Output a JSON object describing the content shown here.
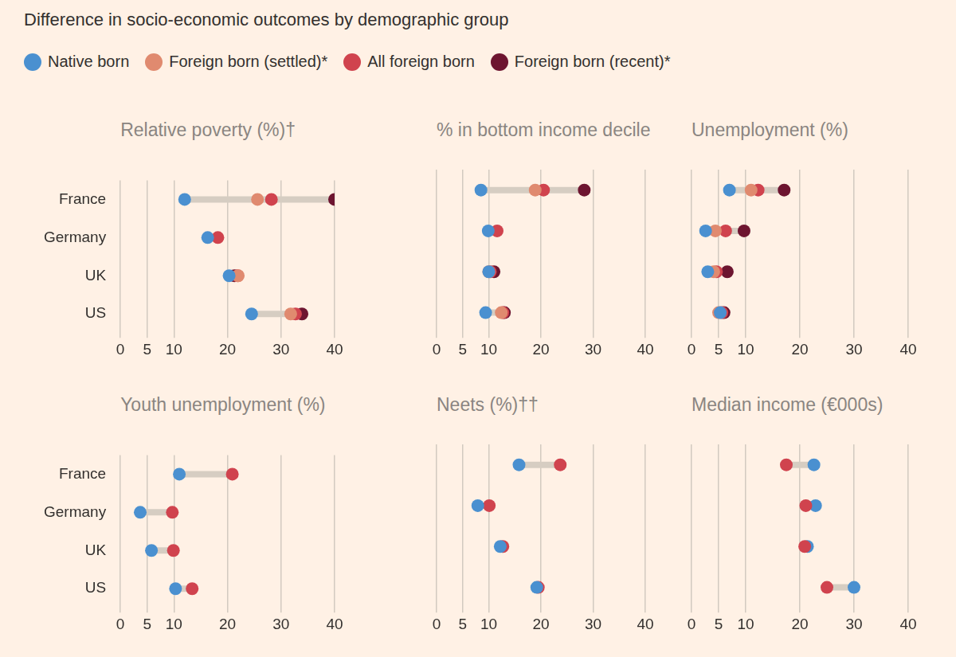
{
  "title": "Difference in socio-economic outcomes by demographic group",
  "legend": "top-left",
  "chart_data": [
    {
      "type": "dot",
      "title": "Relative poverty (%)†",
      "orientation": "horizontal",
      "categories": [
        "France",
        "Germany",
        "UK",
        "US"
      ],
      "series": [
        {
          "name": "Native born",
          "color": "#4a90d0",
          "values": [
            12,
            16.3,
            20.3,
            24.5
          ]
        },
        {
          "name": "Foreign born (settled)*",
          "color": "#e08a6f",
          "values": [
            25.6,
            null,
            22,
            31.8
          ]
        },
        {
          "name": "All foreign born",
          "color": "#d0434e",
          "values": [
            28.2,
            18.2,
            21.9,
            32.7
          ]
        },
        {
          "name": "Foreign born (recent)*",
          "color": "#6d1530",
          "values": [
            40,
            null,
            21.3,
            33.9
          ]
        }
      ],
      "xlim": [
        0,
        40
      ],
      "xticks": [
        0,
        5,
        10,
        20,
        30,
        40
      ],
      "grid": true
    },
    {
      "type": "dot",
      "title": "% in bottom income decile",
      "orientation": "horizontal",
      "categories": [
        "France",
        "Germany",
        "UK",
        "US"
      ],
      "series": [
        {
          "name": "Native born",
          "color": "#4a90d0",
          "values": [
            8.5,
            9.9,
            10,
            9.4
          ]
        },
        {
          "name": "Foreign born (settled)*",
          "color": "#e08a6f",
          "values": [
            18.9,
            null,
            10,
            12.4
          ]
        },
        {
          "name": "All foreign born",
          "color": "#d0434e",
          "values": [
            20.5,
            11.6,
            10.3,
            12.7
          ]
        },
        {
          "name": "Foreign born (recent)*",
          "color": "#6d1530",
          "values": [
            28.3,
            null,
            11,
            13
          ]
        }
      ],
      "xlim": [
        0,
        40
      ],
      "xticks": [
        0,
        5,
        10,
        20,
        30,
        40
      ],
      "grid": true,
      "tick_labels": "x"
    },
    {
      "type": "dot",
      "title": "Unemployment (%)",
      "orientation": "horizontal",
      "categories": [
        "France",
        "Germany",
        "UK",
        "US"
      ],
      "series": [
        {
          "name": "Native born",
          "color": "#4a90d0",
          "values": [
            7,
            2.6,
            3,
            5.3
          ]
        },
        {
          "name": "Foreign born (settled)*",
          "color": "#e08a6f",
          "values": [
            11,
            4.4,
            4.1,
            5
          ]
        },
        {
          "name": "All foreign born",
          "color": "#d0434e",
          "values": [
            12.3,
            6.3,
            4.6,
            5.6
          ]
        },
        {
          "name": "Foreign born (recent)*",
          "color": "#6d1530",
          "values": [
            17.1,
            9.7,
            6.6,
            6
          ]
        }
      ],
      "xlim": [
        0,
        40
      ],
      "xticks": [
        0,
        5,
        10,
        20,
        30,
        40
      ],
      "grid": true,
      "tick_labels": "x"
    },
    {
      "type": "dot",
      "title": "Youth unemployment (%)",
      "orientation": "horizontal",
      "categories": [
        "France",
        "Germany",
        "UK",
        "US"
      ],
      "series": [
        {
          "name": "Native born",
          "color": "#4a90d0",
          "values": [
            11,
            3.7,
            5.8,
            10.3
          ]
        },
        {
          "name": "All foreign born",
          "color": "#d0434e",
          "values": [
            20.9,
            9.7,
            9.9,
            13.4
          ]
        }
      ],
      "xlim": [
        0,
        40
      ],
      "xticks": [
        0,
        5,
        10,
        20,
        30,
        40
      ],
      "grid": true
    },
    {
      "type": "dot",
      "title": "Neets (%)††",
      "orientation": "horizontal",
      "categories": [
        "France",
        "Germany",
        "UK",
        "US"
      ],
      "series": [
        {
          "name": "Native born",
          "color": "#4a90d0",
          "values": [
            15.8,
            7.9,
            12.2,
            19.2
          ]
        },
        {
          "name": "All foreign born",
          "color": "#d0434e",
          "values": [
            23.7,
            10.1,
            12.7,
            19.5
          ]
        }
      ],
      "xlim": [
        0,
        40
      ],
      "xticks": [
        0,
        5,
        10,
        20,
        30,
        40
      ],
      "grid": true,
      "tick_labels": "x"
    },
    {
      "type": "dot",
      "title": "Median income (€000s)",
      "orientation": "horizontal",
      "categories": [
        "France",
        "Germany",
        "UK",
        "US"
      ],
      "series": [
        {
          "name": "All foreign born",
          "color": "#d0434e",
          "values": [
            17.5,
            21.1,
            20.9,
            25
          ]
        },
        {
          "name": "Native born",
          "color": "#4a90d0",
          "values": [
            22.6,
            22.9,
            21.4,
            30
          ]
        }
      ],
      "xlim": [
        0,
        40
      ],
      "xticks": [
        0,
        5,
        10,
        20,
        30,
        40
      ],
      "grid": true,
      "tick_labels": "x"
    }
  ]
}
